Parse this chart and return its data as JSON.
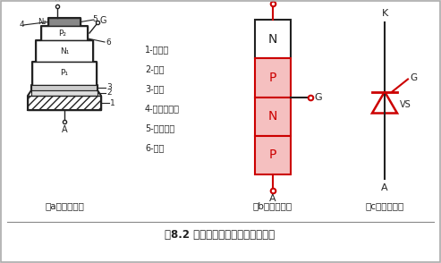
{
  "bg_color": "#ffffff",
  "title": "图8.2 晶闸管的结构示意和表示符号",
  "label_a": "（a）内部结构",
  "label_b": "（b）结构示意",
  "label_c": "（c）表示符号",
  "list_items": [
    "1-铜底座",
    "2-钼片",
    "3-铝片",
    "4-金钨合金片",
    "5-金硅熔片",
    "6-硅片"
  ],
  "black": "#222222",
  "red": "#cc0000",
  "fig_w": 4.93,
  "fig_h": 2.94,
  "dpi": 100
}
